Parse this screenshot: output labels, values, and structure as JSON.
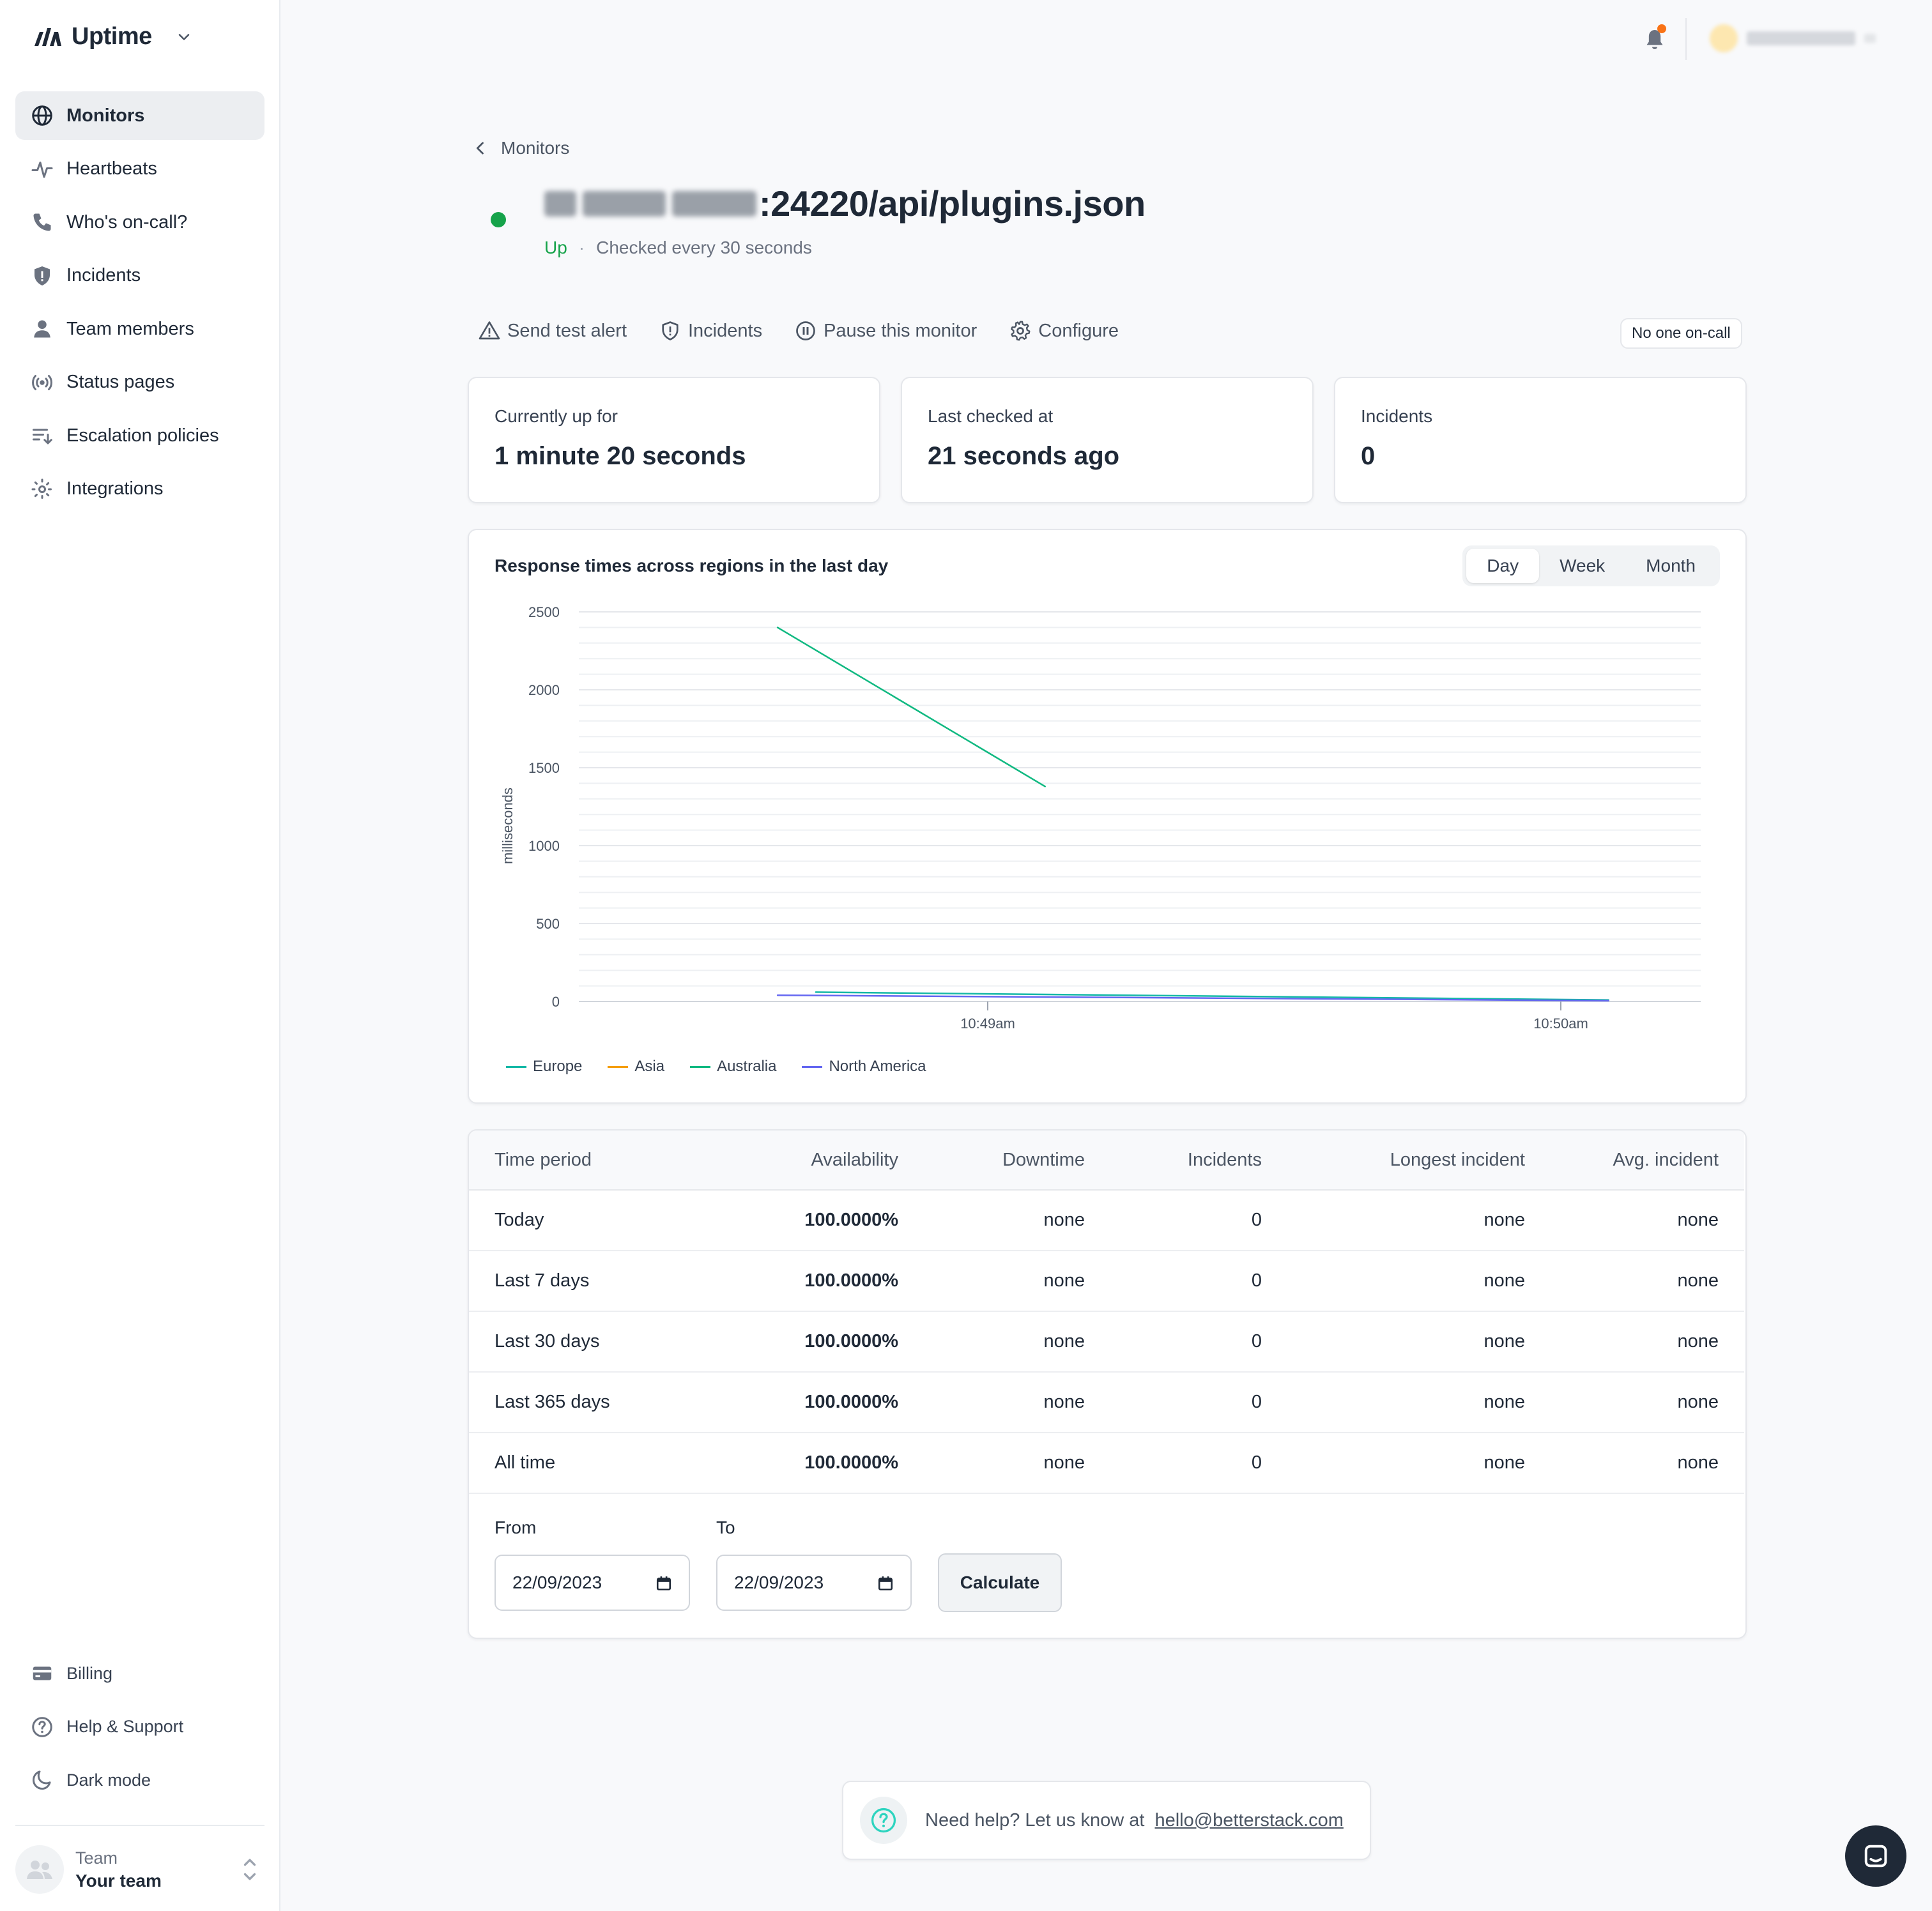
{
  "app": {
    "name": "Uptime"
  },
  "sidebar": {
    "items": [
      {
        "label": "Monitors",
        "icon": "globe-icon",
        "active": true
      },
      {
        "label": "Heartbeats",
        "icon": "heartbeat-icon"
      },
      {
        "label": "Who's on-call?",
        "icon": "phone-icon"
      },
      {
        "label": "Incidents",
        "icon": "shield-icon"
      },
      {
        "label": "Team members",
        "icon": "person-icon"
      },
      {
        "label": "Status pages",
        "icon": "broadcast-icon"
      },
      {
        "label": "Escalation policies",
        "icon": "escalation-icon"
      },
      {
        "label": "Integrations",
        "icon": "integrations-icon"
      }
    ],
    "bottom": [
      {
        "label": "Billing",
        "icon": "credit-card-icon"
      },
      {
        "label": "Help & Support",
        "icon": "help-icon"
      },
      {
        "label": "Dark mode",
        "icon": "moon-icon"
      }
    ],
    "team": {
      "label": "Team",
      "name": "Your team"
    }
  },
  "monitor": {
    "back_label": "Monitors",
    "title_suffix": ":24220/api/plugins.json",
    "status": "Up",
    "check_interval": "Checked every 30 seconds",
    "actions": [
      {
        "label": "Send test alert",
        "icon": "warning-icon"
      },
      {
        "label": "Incidents",
        "icon": "shield-icon"
      },
      {
        "label": "Pause this monitor",
        "icon": "pause-icon"
      },
      {
        "label": "Configure",
        "icon": "gear-icon"
      }
    ],
    "oncall": "No one on-call"
  },
  "stats": [
    {
      "label": "Currently up for",
      "value": "1 minute 20 seconds"
    },
    {
      "label": "Last checked at",
      "value": "21 seconds ago"
    },
    {
      "label": "Incidents",
      "value": "0"
    }
  ],
  "chart": {
    "title": "Response times across regions in the last day",
    "ranges": [
      "Day",
      "Week",
      "Month"
    ],
    "active_range": "Day"
  },
  "chart_data": {
    "type": "line",
    "ylabel": "milliseconds",
    "ylim": [
      0,
      2500
    ],
    "yticks": [
      0,
      500,
      1000,
      1500,
      2000,
      2500
    ],
    "xticks": [
      "10:49am",
      "10:50am"
    ],
    "grid": true,
    "legend_position": "bottom-left",
    "series": [
      {
        "name": "Europe",
        "color": "#14b8a6",
        "x": [
          "10:48:42am",
          "10:50:05am"
        ],
        "values": [
          60,
          10
        ]
      },
      {
        "name": "Asia",
        "color": "#f59e0b",
        "x": [],
        "values": []
      },
      {
        "name": "Australia",
        "color": "#10b981",
        "x": [
          "10:48:38am",
          "10:49:06am"
        ],
        "values": [
          2400,
          1380
        ]
      },
      {
        "name": "North America",
        "color": "#6366f1",
        "x": [
          "10:48:38am",
          "10:50:05am"
        ],
        "values": [
          40,
          5
        ]
      }
    ]
  },
  "availability": {
    "headers": [
      "Time period",
      "Availability",
      "Downtime",
      "Incidents",
      "Longest incident",
      "Avg. incident"
    ],
    "rows": [
      [
        "Today",
        "100.0000%",
        "none",
        "0",
        "none",
        "none"
      ],
      [
        "Last 7 days",
        "100.0000%",
        "none",
        "0",
        "none",
        "none"
      ],
      [
        "Last 30 days",
        "100.0000%",
        "none",
        "0",
        "none",
        "none"
      ],
      [
        "Last 365 days",
        "100.0000%",
        "none",
        "0",
        "none",
        "none"
      ],
      [
        "All time",
        "100.0000%",
        "none",
        "0",
        "none",
        "none"
      ]
    ],
    "from_label": "From",
    "to_label": "To",
    "from_value": "22/09/2023",
    "to_value": "22/09/2023",
    "calculate_label": "Calculate"
  },
  "help": {
    "text": "Need help? Let us know at",
    "email": "hello@betterstack.com"
  },
  "colors": {
    "up": "#16a34a",
    "notification_dot": "#f97316"
  }
}
